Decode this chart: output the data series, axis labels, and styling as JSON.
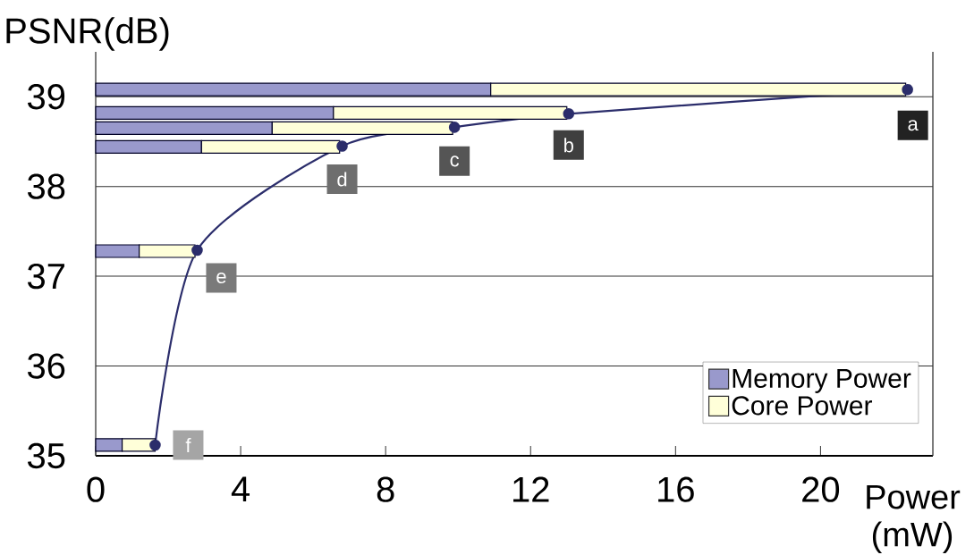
{
  "chart_data": {
    "type": "bar",
    "orientation": "horizontal",
    "stacked": true,
    "ylabel": "PSNR(dB)",
    "xlabel": "Power (mW)",
    "xlim": [
      0,
      23.1
    ],
    "ylim": [
      35,
      39.5
    ],
    "xticks": [
      0,
      4,
      8,
      12,
      16,
      20
    ],
    "yticks": [
      35,
      36,
      37,
      38,
      39
    ],
    "grid": "y",
    "legend": "bottom right",
    "marker": "circle",
    "series": [
      {
        "name": "Memory Power",
        "color": "#9999cc",
        "x": [
          39.08,
          38.82,
          38.65,
          38.44,
          37.28,
          35.12
        ],
        "values": [
          10.9,
          6.56,
          4.87,
          2.92,
          1.2,
          0.73
        ]
      },
      {
        "name": "Core Power",
        "color": "#ffffd9",
        "x": [
          39.08,
          38.82,
          38.65,
          38.44,
          37.28,
          35.12
        ],
        "values": [
          11.45,
          6.44,
          4.98,
          3.81,
          1.54,
          0.91
        ]
      },
      {
        "type": "line",
        "color": "#2b2d6b",
        "x": [
          35.12,
          37.29,
          38.45,
          38.66,
          38.81,
          39.08
        ],
        "values": [
          1.64,
          2.8,
          6.8,
          9.9,
          13.05,
          22.4
        ]
      }
    ],
    "annotations": [
      {
        "text": "a",
        "x": 22.4,
        "y": 39.08
      },
      {
        "text": "b",
        "x": 13.05,
        "y": 38.81
      },
      {
        "text": "c",
        "x": 9.9,
        "y": 38.66
      },
      {
        "text": "d",
        "x": 6.8,
        "y": 38.45
      },
      {
        "text": "e",
        "x": 2.8,
        "y": 37.29
      },
      {
        "text": "f",
        "x": 1.64,
        "y": 35.12
      }
    ]
  }
}
